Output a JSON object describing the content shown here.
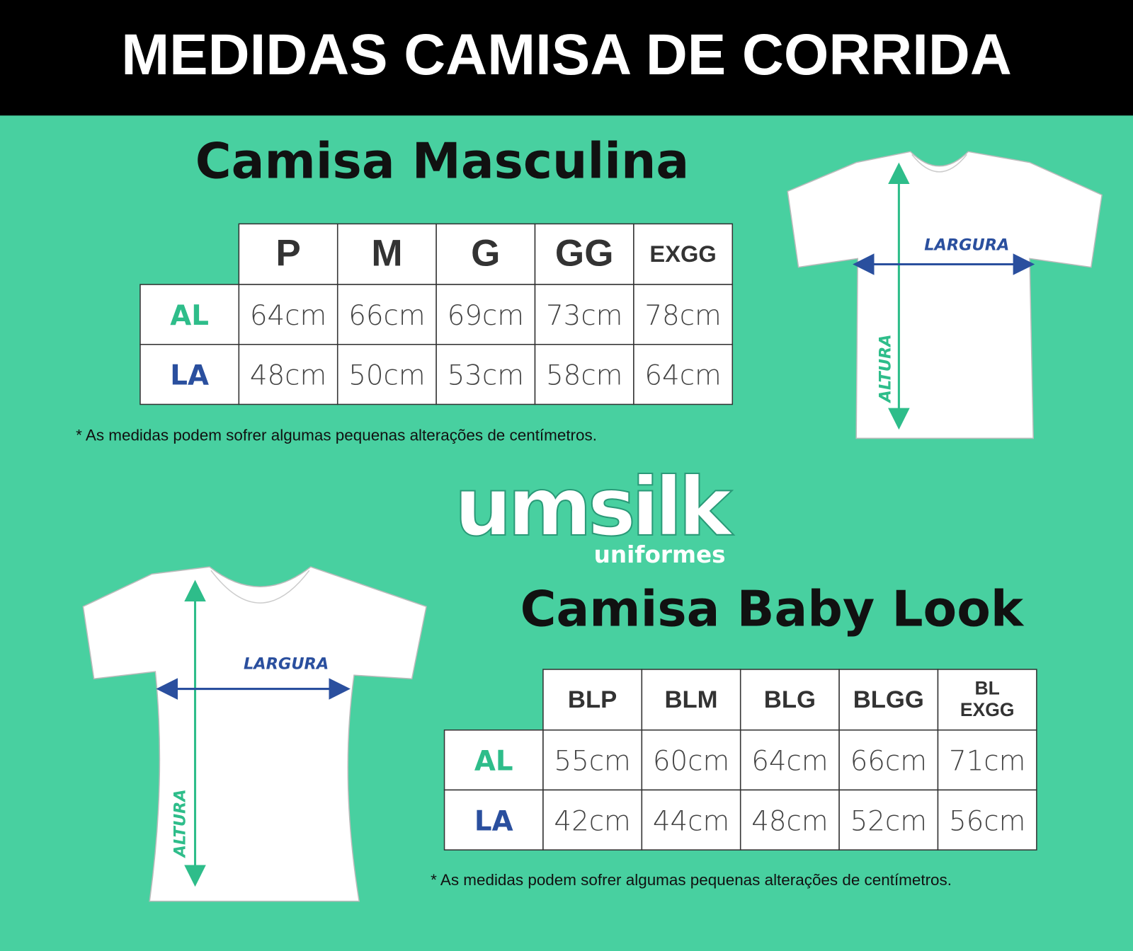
{
  "header": {
    "title": "MEDIDAS CAMISA DE CORRIDA"
  },
  "sections": [
    {
      "title": "Camisa Masculina",
      "table": {
        "columns": [
          "P",
          "M",
          "G",
          "GG",
          "EXGG"
        ],
        "rows": [
          {
            "label": "AL",
            "cells": [
              "64cm",
              "66cm",
              "69cm",
              "73cm",
              "78cm"
            ]
          },
          {
            "label": "LA",
            "cells": [
              "48cm",
              "50cm",
              "53cm",
              "58cm",
              "64cm"
            ]
          }
        ]
      },
      "note": "* As medidas podem sofrer algumas pequenas alterações de centímetros."
    },
    {
      "title": "Camisa Baby Look",
      "table": {
        "columns": [
          "BLP",
          "BLM",
          "BLG",
          "BLGG",
          "BL EXGG"
        ],
        "rows": [
          {
            "label": "AL",
            "cells": [
              "55cm",
              "60cm",
              "64cm",
              "66cm",
              "71cm"
            ]
          },
          {
            "label": "LA",
            "cells": [
              "42cm",
              "44cm",
              "48cm",
              "52cm",
              "56cm"
            ]
          }
        ]
      },
      "note": "* As medidas podem sofrer algumas pequenas alterações de centímetros."
    }
  ],
  "logo": {
    "name": "umsilk",
    "tagline": "uniformes"
  },
  "diagrams": [
    {
      "width_label": "LARGURA",
      "height_label": "ALTURA"
    },
    {
      "width_label": "LARGURA",
      "height_label": "ALTURA"
    }
  ]
}
